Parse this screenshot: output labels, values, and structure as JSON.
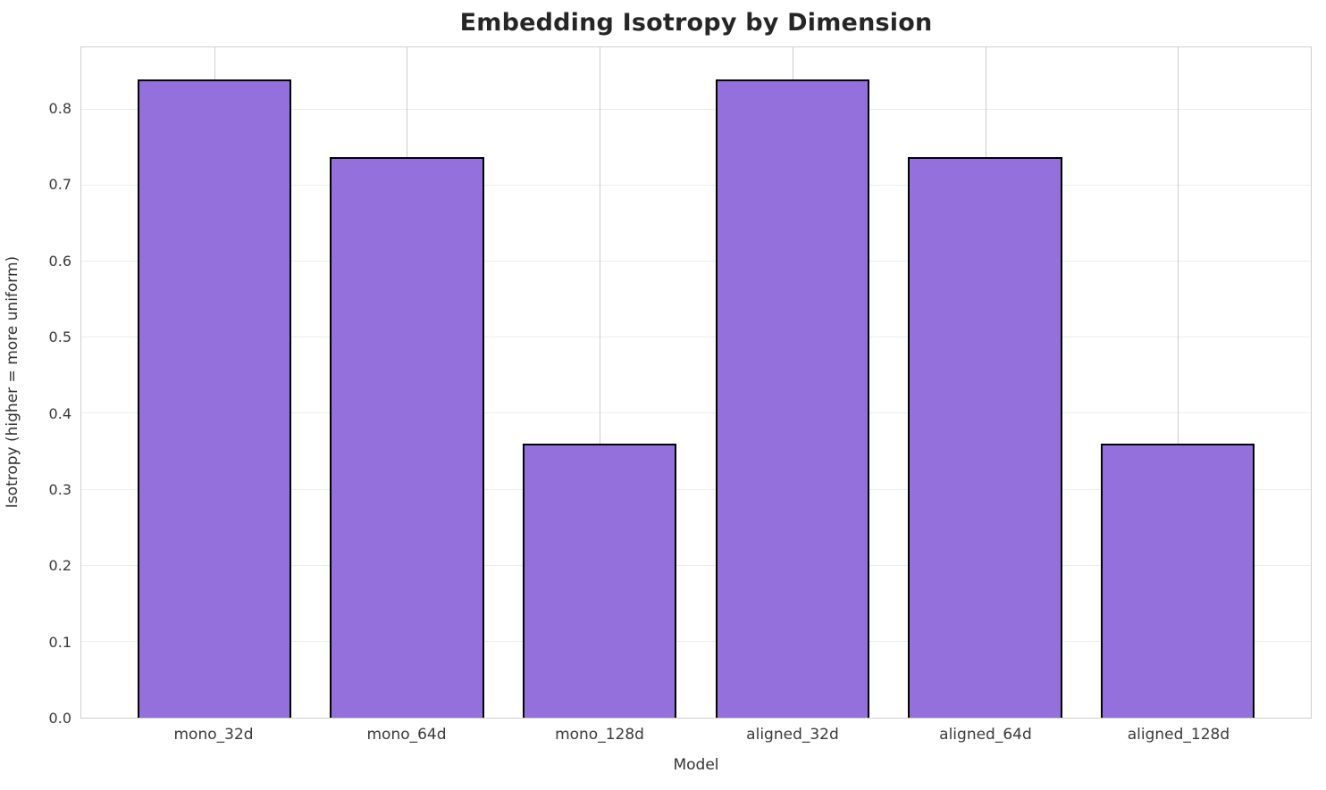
{
  "chart_data": {
    "type": "bar",
    "title": "Embedding Isotropy by Dimension",
    "xlabel": "Model",
    "ylabel": "Isotropy (higher = more uniform)",
    "categories": [
      "mono_32d",
      "mono_64d",
      "mono_128d",
      "aligned_32d",
      "aligned_64d",
      "aligned_128d"
    ],
    "values": [
      0.84,
      0.737,
      0.36,
      0.84,
      0.737,
      0.36
    ],
    "ylim": [
      0,
      0.882
    ],
    "yticks": [
      0.0,
      0.1,
      0.2,
      0.3,
      0.4,
      0.5,
      0.6,
      0.7,
      0.8
    ],
    "ytick_labels": [
      "0.0",
      "0.1",
      "0.2",
      "0.3",
      "0.4",
      "0.5",
      "0.6",
      "0.7",
      "0.8"
    ],
    "grid": true,
    "legend": "none",
    "bar_color": "#9370DB",
    "bar_edge_color": "#000000",
    "bar_width_fraction": 0.8
  }
}
